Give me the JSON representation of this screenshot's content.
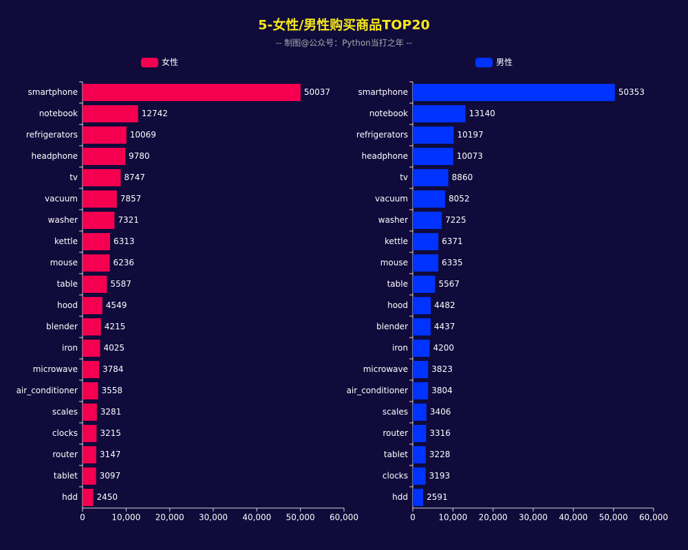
{
  "title": "5-女性/男性购买商品TOP20",
  "subtitle": "-- 制图@公众号：Python当打之年 --",
  "chart_data": [
    {
      "type": "bar",
      "orientation": "horizontal",
      "categories": [
        "smartphone",
        "notebook",
        "refrigerators",
        "headphone",
        "tv",
        "vacuum",
        "washer",
        "kettle",
        "mouse",
        "table",
        "hood",
        "blender",
        "iron",
        "microwave",
        "air_conditioner",
        "scales",
        "clocks",
        "router",
        "tablet",
        "hdd"
      ],
      "series": [
        {
          "name": "女性",
          "color": "#f50050",
          "values": [
            50037,
            12742,
            10069,
            9780,
            8747,
            7857,
            7321,
            6313,
            6236,
            5587,
            4549,
            4215,
            4025,
            3784,
            3558,
            3281,
            3215,
            3147,
            3097,
            2450
          ]
        }
      ],
      "xlim": [
        0,
        60000
      ],
      "xticks": [
        0,
        {
          "value": 10000,
          "label": "10,000"
        },
        {
          "value": 20000,
          "label": "20,000"
        },
        {
          "value": 30000,
          "label": "30,000"
        },
        {
          "value": 40000,
          "label": "40,000"
        },
        {
          "value": 50000,
          "label": "50,000"
        },
        {
          "value": 60000,
          "label": "60,000"
        }
      ]
    },
    {
      "type": "bar",
      "orientation": "horizontal",
      "categories": [
        "smartphone",
        "notebook",
        "refrigerators",
        "headphone",
        "tv",
        "vacuum",
        "washer",
        "kettle",
        "mouse",
        "table",
        "hood",
        "blender",
        "iron",
        "microwave",
        "air_conditioner",
        "scales",
        "router",
        "tablet",
        "clocks",
        "hdd"
      ],
      "series": [
        {
          "name": "男性",
          "color": "#0033ff",
          "values": [
            50353,
            13140,
            10197,
            10073,
            8860,
            8052,
            7225,
            6371,
            6335,
            5567,
            4482,
            4437,
            4200,
            3823,
            3804,
            3406,
            3316,
            3228,
            3193,
            2591
          ]
        }
      ],
      "xlim": [
        0,
        60000
      ],
      "xticks": [
        0,
        {
          "value": 10000,
          "label": "10,000"
        },
        {
          "value": 20000,
          "label": "20,000"
        },
        {
          "value": 30000,
          "label": "30,000"
        },
        {
          "value": 40000,
          "label": "40,000"
        },
        {
          "value": 50000,
          "label": "50,000"
        },
        {
          "value": 60000,
          "label": "60,000"
        }
      ]
    }
  ]
}
